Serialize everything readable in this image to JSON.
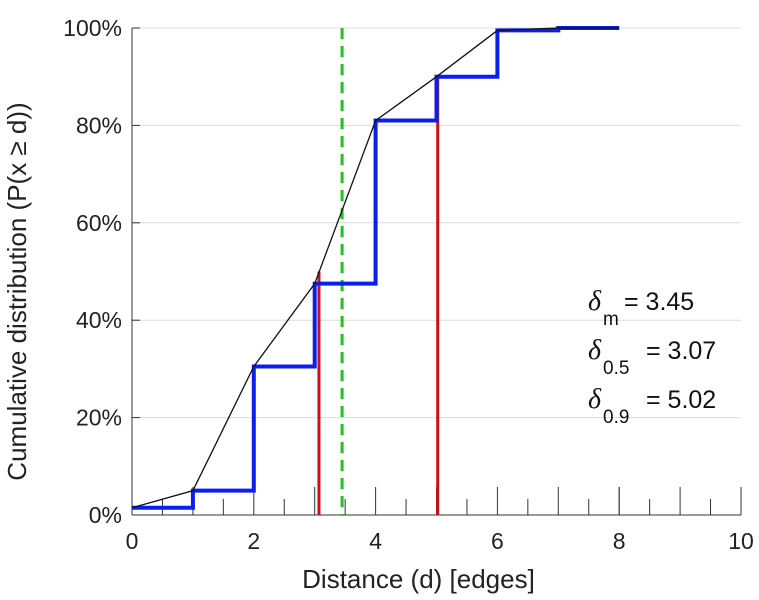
{
  "chart_data": {
    "type": "line",
    "xlabel": "Distance (d) [edges]",
    "ylabel": "Cumulative distribution (P(x ≥ d))",
    "xlim": [
      0,
      10
    ],
    "ylim": [
      0,
      100
    ],
    "x_ticks": [
      0,
      2,
      4,
      6,
      8,
      10
    ],
    "x_minor_ticks": [
      0.5,
      1,
      1.5,
      2.5,
      3,
      3.5,
      4.5,
      5,
      5.5,
      6.5,
      7,
      7.5,
      8,
      8.5,
      9,
      9.5
    ],
    "y_ticks": [
      0,
      20,
      40,
      60,
      80,
      100
    ],
    "y_tick_labels": [
      "0%",
      "20%",
      "40%",
      "60%",
      "80%",
      "100%"
    ],
    "grid": "horizontal",
    "series": [
      {
        "style": "step",
        "color": "#0a1ef0",
        "x": [
          0,
          1,
          2,
          3,
          4,
          5,
          6,
          7,
          8
        ],
        "y": [
          1.5,
          5,
          30.5,
          47.5,
          81,
          90,
          99.5,
          100,
          100
        ]
      },
      {
        "style": "line",
        "color": "#111111",
        "x": [
          0,
          1,
          2,
          3,
          4,
          5,
          6,
          7,
          8
        ],
        "y": [
          1.5,
          5,
          30.5,
          47.5,
          81,
          90,
          99.5,
          100,
          100
        ]
      }
    ],
    "vlines": [
      {
        "x": 3.07,
        "y_top": 50,
        "color": "#cc1111",
        "dash": "solid"
      },
      {
        "x": 5.02,
        "y_top": 90,
        "color": "#cc1111",
        "dash": "solid"
      },
      {
        "x": 3.45,
        "y_top": 100,
        "color": "#11cc11",
        "dash": "dashed"
      }
    ],
    "annotations": [
      {
        "symbol": "δ",
        "subscript": "m",
        "text": "= 3.45"
      },
      {
        "symbol": "δ",
        "subscript": "0.5",
        "text": "= 3.07"
      },
      {
        "symbol": "δ",
        "subscript": "0.9",
        "text": "= 5.02"
      }
    ]
  }
}
